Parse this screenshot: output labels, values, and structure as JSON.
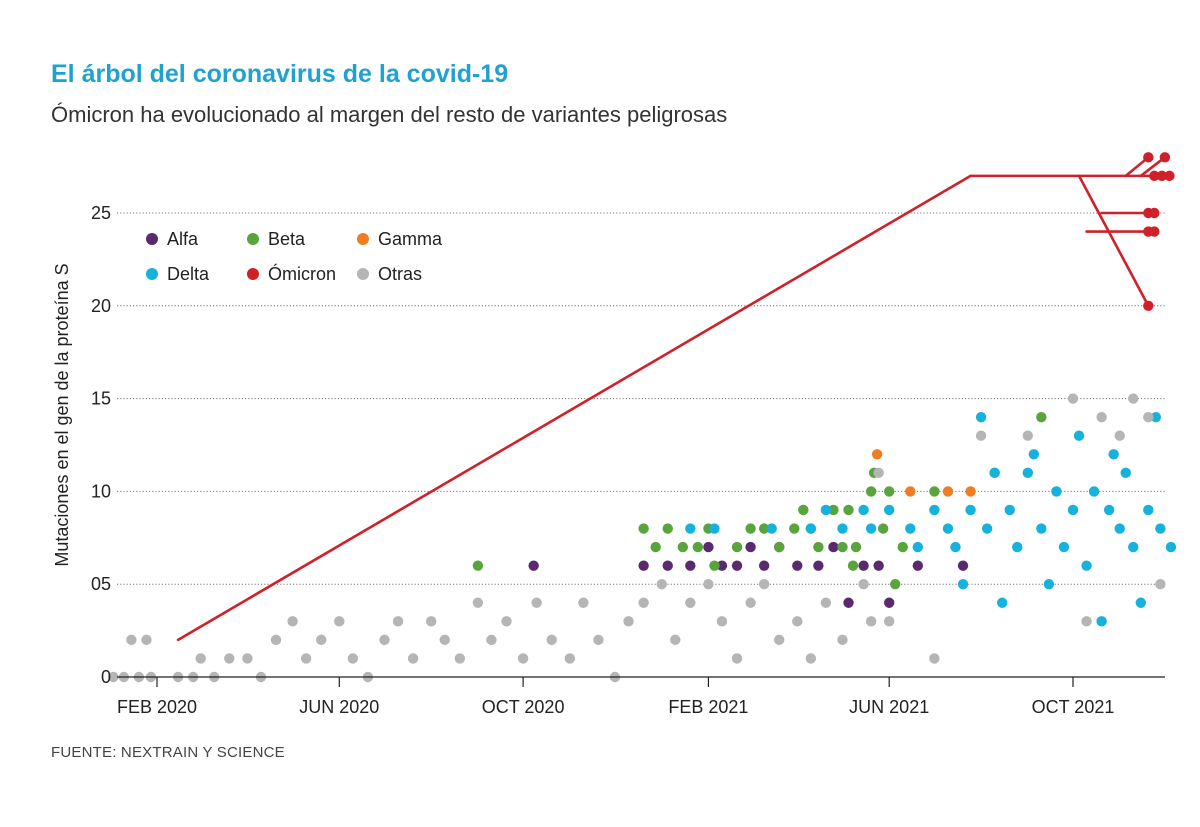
{
  "title": "El árbol del coronavirus de la covid-19",
  "subtitle": "Ómicron ha evolucionado al margen del resto de variantes peligrosas",
  "source": "FUENTE: NEXTRAIN Y SCIENCE",
  "chart_data": {
    "type": "scatter",
    "title": "El árbol del coronavirus de la covid-19",
    "subtitle": "Ómicron ha evolucionado al margen del resto de variantes peligrosas",
    "xlabel": "",
    "ylabel": "Mutaciones en el gen de la proteína S",
    "xlim": [
      "2020-01-01",
      "2021-12-15"
    ],
    "ylim": [
      0,
      27
    ],
    "grid": true,
    "legend_position": "top-left",
    "x_ticks": [
      {
        "date": "2020-02-01",
        "label": "FEB 2020"
      },
      {
        "date": "2020-06-01",
        "label": "JUN 2020"
      },
      {
        "date": "2020-10-01",
        "label": "OCT 2020"
      },
      {
        "date": "2021-02-01",
        "label": "FEB 2021"
      },
      {
        "date": "2021-06-01",
        "label": "JUN 2021"
      },
      {
        "date": "2021-10-01",
        "label": "OCT 2021"
      }
    ],
    "y_ticks": [
      {
        "value": 0,
        "label": "0"
      },
      {
        "value": 5,
        "label": "05"
      },
      {
        "value": 10,
        "label": "10"
      },
      {
        "value": 15,
        "label": "15"
      },
      {
        "value": 20,
        "label": "20"
      },
      {
        "value": 25,
        "label": "25"
      }
    ],
    "series": [
      {
        "name": "Alfa",
        "color": "#5a2a6e",
        "points": [
          {
            "x": "2020-10-08",
            "y": 6
          },
          {
            "x": "2020-12-20",
            "y": 6
          },
          {
            "x": "2021-01-05",
            "y": 6
          },
          {
            "x": "2021-01-20",
            "y": 6
          },
          {
            "x": "2021-02-01",
            "y": 7
          },
          {
            "x": "2021-02-10",
            "y": 6
          },
          {
            "x": "2021-02-20",
            "y": 6
          },
          {
            "x": "2021-03-01",
            "y": 7
          },
          {
            "x": "2021-03-10",
            "y": 6
          },
          {
            "x": "2021-03-20",
            "y": 7
          },
          {
            "x": "2021-04-01",
            "y": 6
          },
          {
            "x": "2021-04-15",
            "y": 6
          },
          {
            "x": "2021-04-25",
            "y": 7
          },
          {
            "x": "2021-05-05",
            "y": 4
          },
          {
            "x": "2021-05-15",
            "y": 6
          },
          {
            "x": "2021-05-25",
            "y": 6
          },
          {
            "x": "2021-06-01",
            "y": 4
          },
          {
            "x": "2021-06-20",
            "y": 6
          },
          {
            "x": "2021-07-20",
            "y": 6
          }
        ]
      },
      {
        "name": "Beta",
        "color": "#59a43c",
        "points": [
          {
            "x": "2020-09-01",
            "y": 6
          },
          {
            "x": "2020-12-20",
            "y": 8
          },
          {
            "x": "2020-12-28",
            "y": 7
          },
          {
            "x": "2021-01-05",
            "y": 8
          },
          {
            "x": "2021-01-15",
            "y": 7
          },
          {
            "x": "2021-01-25",
            "y": 7
          },
          {
            "x": "2021-02-01",
            "y": 8
          },
          {
            "x": "2021-02-05",
            "y": 6
          },
          {
            "x": "2021-02-20",
            "y": 7
          },
          {
            "x": "2021-03-01",
            "y": 8
          },
          {
            "x": "2021-03-10",
            "y": 8
          },
          {
            "x": "2021-03-20",
            "y": 7
          },
          {
            "x": "2021-03-30",
            "y": 8
          },
          {
            "x": "2021-04-05",
            "y": 9
          },
          {
            "x": "2021-04-10",
            "y": 8
          },
          {
            "x": "2021-04-15",
            "y": 7
          },
          {
            "x": "2021-04-25",
            "y": 9
          },
          {
            "x": "2021-05-01",
            "y": 7
          },
          {
            "x": "2021-05-05",
            "y": 9
          },
          {
            "x": "2021-05-08",
            "y": 6
          },
          {
            "x": "2021-05-10",
            "y": 7
          },
          {
            "x": "2021-05-20",
            "y": 10
          },
          {
            "x": "2021-05-22",
            "y": 11
          },
          {
            "x": "2021-05-28",
            "y": 8
          },
          {
            "x": "2021-06-01",
            "y": 10
          },
          {
            "x": "2021-06-05",
            "y": 5
          },
          {
            "x": "2021-06-10",
            "y": 7
          },
          {
            "x": "2021-07-01",
            "y": 10
          },
          {
            "x": "2021-09-10",
            "y": 14
          }
        ]
      },
      {
        "name": "Gamma",
        "color": "#ef7d22",
        "points": [
          {
            "x": "2021-05-24",
            "y": 12
          },
          {
            "x": "2021-06-15",
            "y": 10
          },
          {
            "x": "2021-07-10",
            "y": 10
          },
          {
            "x": "2021-07-25",
            "y": 10
          },
          {
            "x": "2021-08-10",
            "y": 11
          }
        ]
      },
      {
        "name": "Delta",
        "color": "#16b2dc",
        "points": [
          {
            "x": "2021-01-20",
            "y": 8
          },
          {
            "x": "2021-02-05",
            "y": 8
          },
          {
            "x": "2021-03-15",
            "y": 8
          },
          {
            "x": "2021-04-10",
            "y": 8
          },
          {
            "x": "2021-04-20",
            "y": 9
          },
          {
            "x": "2021-05-01",
            "y": 8
          },
          {
            "x": "2021-05-15",
            "y": 9
          },
          {
            "x": "2021-05-20",
            "y": 8
          },
          {
            "x": "2021-06-01",
            "y": 9
          },
          {
            "x": "2021-06-15",
            "y": 8
          },
          {
            "x": "2021-06-20",
            "y": 7
          },
          {
            "x": "2021-07-01",
            "y": 9
          },
          {
            "x": "2021-07-10",
            "y": 8
          },
          {
            "x": "2021-07-15",
            "y": 7
          },
          {
            "x": "2021-07-20",
            "y": 5
          },
          {
            "x": "2021-07-25",
            "y": 9
          },
          {
            "x": "2021-08-01",
            "y": 14
          },
          {
            "x": "2021-08-05",
            "y": 8
          },
          {
            "x": "2021-08-10",
            "y": 11
          },
          {
            "x": "2021-08-15",
            "y": 4
          },
          {
            "x": "2021-08-20",
            "y": 9
          },
          {
            "x": "2021-08-25",
            "y": 7
          },
          {
            "x": "2021-09-01",
            "y": 11
          },
          {
            "x": "2021-09-05",
            "y": 12
          },
          {
            "x": "2021-09-10",
            "y": 8
          },
          {
            "x": "2021-09-15",
            "y": 5
          },
          {
            "x": "2021-09-20",
            "y": 10
          },
          {
            "x": "2021-09-25",
            "y": 7
          },
          {
            "x": "2021-10-01",
            "y": 9
          },
          {
            "x": "2021-10-05",
            "y": 13
          },
          {
            "x": "2021-10-10",
            "y": 6
          },
          {
            "x": "2021-10-15",
            "y": 10
          },
          {
            "x": "2021-10-20",
            "y": 3
          },
          {
            "x": "2021-10-25",
            "y": 9
          },
          {
            "x": "2021-10-28",
            "y": 12
          },
          {
            "x": "2021-11-01",
            "y": 8
          },
          {
            "x": "2021-11-05",
            "y": 11
          },
          {
            "x": "2021-11-10",
            "y": 7
          },
          {
            "x": "2021-11-15",
            "y": 4
          },
          {
            "x": "2021-11-20",
            "y": 9
          },
          {
            "x": "2021-11-25",
            "y": 14
          },
          {
            "x": "2021-11-28",
            "y": 8
          },
          {
            "x": "2021-12-05",
            "y": 7
          }
        ]
      },
      {
        "name": "Ómicron",
        "color": "#d0202a",
        "points": [
          {
            "x": "2021-11-20",
            "y": 20
          },
          {
            "x": "2021-11-20",
            "y": 24
          },
          {
            "x": "2021-11-24",
            "y": 24
          },
          {
            "x": "2021-11-20",
            "y": 25
          },
          {
            "x": "2021-11-24",
            "y": 25
          },
          {
            "x": "2021-11-20",
            "y": 28
          },
          {
            "x": "2021-11-24",
            "y": 27
          },
          {
            "x": "2021-11-29",
            "y": 27
          },
          {
            "x": "2021-12-01",
            "y": 28
          },
          {
            "x": "2021-12-04",
            "y": 27
          }
        ]
      },
      {
        "name": "Otras",
        "color": "#b5b5b5",
        "points": [
          {
            "x": "2020-01-03",
            "y": 0
          },
          {
            "x": "2020-01-10",
            "y": 0
          },
          {
            "x": "2020-01-15",
            "y": 2
          },
          {
            "x": "2020-01-20",
            "y": 0
          },
          {
            "x": "2020-01-25",
            "y": 2
          },
          {
            "x": "2020-01-28",
            "y": 0
          },
          {
            "x": "2020-02-15",
            "y": 0
          },
          {
            "x": "2020-02-25",
            "y": 0
          },
          {
            "x": "2020-03-01",
            "y": 1
          },
          {
            "x": "2020-03-10",
            "y": 0
          },
          {
            "x": "2020-03-20",
            "y": 1
          },
          {
            "x": "2020-04-01",
            "y": 1
          },
          {
            "x": "2020-04-10",
            "y": 0
          },
          {
            "x": "2020-04-20",
            "y": 2
          },
          {
            "x": "2020-05-01",
            "y": 3
          },
          {
            "x": "2020-05-10",
            "y": 1
          },
          {
            "x": "2020-05-20",
            "y": 2
          },
          {
            "x": "2020-06-01",
            "y": 3
          },
          {
            "x": "2020-06-10",
            "y": 1
          },
          {
            "x": "2020-06-20",
            "y": 0
          },
          {
            "x": "2020-07-01",
            "y": 2
          },
          {
            "x": "2020-07-10",
            "y": 3
          },
          {
            "x": "2020-07-20",
            "y": 1
          },
          {
            "x": "2020-08-01",
            "y": 3
          },
          {
            "x": "2020-08-10",
            "y": 2
          },
          {
            "x": "2020-08-20",
            "y": 1
          },
          {
            "x": "2020-09-01",
            "y": 4
          },
          {
            "x": "2020-09-10",
            "y": 2
          },
          {
            "x": "2020-09-20",
            "y": 3
          },
          {
            "x": "2020-10-01",
            "y": 1
          },
          {
            "x": "2020-10-10",
            "y": 4
          },
          {
            "x": "2020-10-20",
            "y": 2
          },
          {
            "x": "2020-11-01",
            "y": 1
          },
          {
            "x": "2020-11-10",
            "y": 4
          },
          {
            "x": "2020-11-20",
            "y": 2
          },
          {
            "x": "2020-12-01",
            "y": 0
          },
          {
            "x": "2020-12-10",
            "y": 3
          },
          {
            "x": "2020-12-20",
            "y": 4
          },
          {
            "x": "2021-01-01",
            "y": 5
          },
          {
            "x": "2021-01-10",
            "y": 2
          },
          {
            "x": "2021-01-20",
            "y": 4
          },
          {
            "x": "2021-02-01",
            "y": 5
          },
          {
            "x": "2021-02-10",
            "y": 3
          },
          {
            "x": "2021-02-20",
            "y": 1
          },
          {
            "x": "2021-03-01",
            "y": 4
          },
          {
            "x": "2021-03-10",
            "y": 5
          },
          {
            "x": "2021-03-20",
            "y": 2
          },
          {
            "x": "2021-04-01",
            "y": 3
          },
          {
            "x": "2021-04-10",
            "y": 1
          },
          {
            "x": "2021-04-20",
            "y": 4
          },
          {
            "x": "2021-05-01",
            "y": 2
          },
          {
            "x": "2021-05-15",
            "y": 5
          },
          {
            "x": "2021-05-20",
            "y": 3
          },
          {
            "x": "2021-05-25",
            "y": 11
          },
          {
            "x": "2021-06-01",
            "y": 3
          },
          {
            "x": "2021-07-01",
            "y": 1
          },
          {
            "x": "2021-08-01",
            "y": 13
          },
          {
            "x": "2021-09-01",
            "y": 13
          },
          {
            "x": "2021-10-01",
            "y": 15
          },
          {
            "x": "2021-10-10",
            "y": 3
          },
          {
            "x": "2021-10-20",
            "y": 14
          },
          {
            "x": "2021-11-01",
            "y": 13
          },
          {
            "x": "2021-11-10",
            "y": 15
          },
          {
            "x": "2021-11-20",
            "y": 14
          },
          {
            "x": "2021-11-28",
            "y": 5
          }
        ]
      }
    ],
    "tree_lines": [
      {
        "from": {
          "x": "2020-02-15",
          "y": 2
        },
        "to": {
          "x": "2021-07-25",
          "y": 27
        }
      },
      {
        "from": {
          "x": "2021-07-25",
          "y": 27
        },
        "to": {
          "x": "2021-12-04",
          "y": 27
        }
      },
      {
        "from": {
          "x": "2021-10-05",
          "y": 27
        },
        "to": {
          "x": "2021-11-20",
          "y": 20
        }
      },
      {
        "from": {
          "x": "2021-10-10",
          "y": 24
        },
        "to": {
          "x": "2021-11-24",
          "y": 24
        }
      },
      {
        "from": {
          "x": "2021-10-20",
          "y": 25
        },
        "to": {
          "x": "2021-11-24",
          "y": 25
        }
      },
      {
        "from": {
          "x": "2021-11-05",
          "y": 27
        },
        "to": {
          "x": "2021-11-20",
          "y": 28
        }
      },
      {
        "from": {
          "x": "2021-11-15",
          "y": 27
        },
        "to": {
          "x": "2021-12-01",
          "y": 28
        }
      }
    ]
  }
}
